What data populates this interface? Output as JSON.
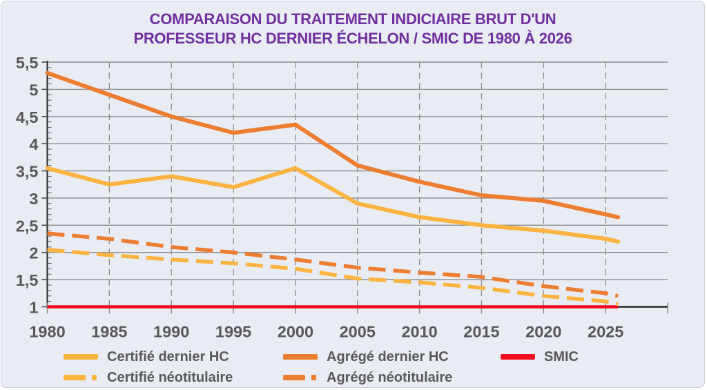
{
  "page": {
    "background": "#E9ECF2",
    "border_color": "#C9CED6"
  },
  "style_colors": {
    "axis": "#262626",
    "grid": "#8C8C8C",
    "tick": "#595959",
    "label": "#595959",
    "title": "#7030A0"
  },
  "chart_data": {
    "type": "line",
    "title": "COMPARAISON DU TRAITEMENT INDICIAIRE BRUT D'UN PROFESSEUR HC DERNIER ÉCHELON / SMIC DE 1980 À 2026",
    "title_lines": [
      "COMPARAISON DU TRAITEMENT INDICIAIRE BRUT D'UN",
      "PROFESSEUR HC DERNIER ÉCHELON / SMIC DE 1980 À 2026"
    ],
    "title_color": "#7030A0",
    "x": [
      1980,
      1985,
      1990,
      1995,
      2000,
      2005,
      2010,
      2015,
      2020,
      2025,
      2026
    ],
    "series": [
      {
        "id": "certifie-dernier-hc",
        "name": "Certifié dernier HC",
        "color": "#FBB440",
        "dash": false,
        "values": [
          3.55,
          3.25,
          3.4,
          3.2,
          3.55,
          2.9,
          2.65,
          2.5,
          2.4,
          2.25,
          2.2
        ]
      },
      {
        "id": "agrege-dernier-hc",
        "name": "Agrégé dernier HC",
        "color": "#ED7D31",
        "dash": false,
        "values": [
          5.3,
          4.9,
          4.5,
          4.2,
          4.35,
          3.6,
          3.3,
          3.05,
          2.95,
          2.7,
          2.65
        ]
      },
      {
        "id": "smic",
        "name": "SMIC",
        "color": "#F20D1E",
        "dash": false,
        "values": [
          1.0,
          1.0,
          1.0,
          1.0,
          1.0,
          1.0,
          1.0,
          1.0,
          1.0,
          1.0,
          1.0
        ]
      },
      {
        "id": "certifie-neotitulaire",
        "name": "Certifié néotitulaire",
        "color": "#FBB440",
        "dash": true,
        "values": [
          2.05,
          1.95,
          1.87,
          1.8,
          1.7,
          1.52,
          1.45,
          1.35,
          1.2,
          1.1,
          1.05
        ]
      },
      {
        "id": "agrege-neotitulaire",
        "name": "Agrégé néotitulaire",
        "color": "#ED7D31",
        "dash": true,
        "values": [
          2.35,
          2.25,
          2.1,
          2.0,
          1.87,
          1.72,
          1.63,
          1.55,
          1.38,
          1.25,
          1.2
        ]
      }
    ],
    "xlim": [
      1980,
      2030
    ],
    "ylim": [
      1,
      5.5
    ],
    "x_ticks": [
      1980,
      1985,
      1990,
      1995,
      2000,
      2005,
      2010,
      2015,
      2020,
      2025,
      2030
    ],
    "x_tick_labels": [
      "1980",
      "1985",
      "1990",
      "1995",
      "2000",
      "2005",
      "2010",
      "2015",
      "2020",
      "2025",
      ""
    ],
    "y_ticks": [
      1,
      1.5,
      2,
      2.5,
      3,
      3.5,
      4,
      4.5,
      5,
      5.5
    ],
    "y_tick_labels": [
      "1",
      "1,5",
      "2",
      "2,5",
      "3",
      "3,5",
      "4",
      "4,5",
      "5",
      "5,5"
    ],
    "grid": {
      "horizontal": "solid",
      "vertical": "dashed"
    },
    "legend_position": "bottom",
    "legend_rows": [
      [
        "certifie-dernier-hc",
        "agrege-dernier-hc",
        "smic"
      ],
      [
        "certifie-neotitulaire",
        "agrege-neotitulaire"
      ]
    ]
  }
}
